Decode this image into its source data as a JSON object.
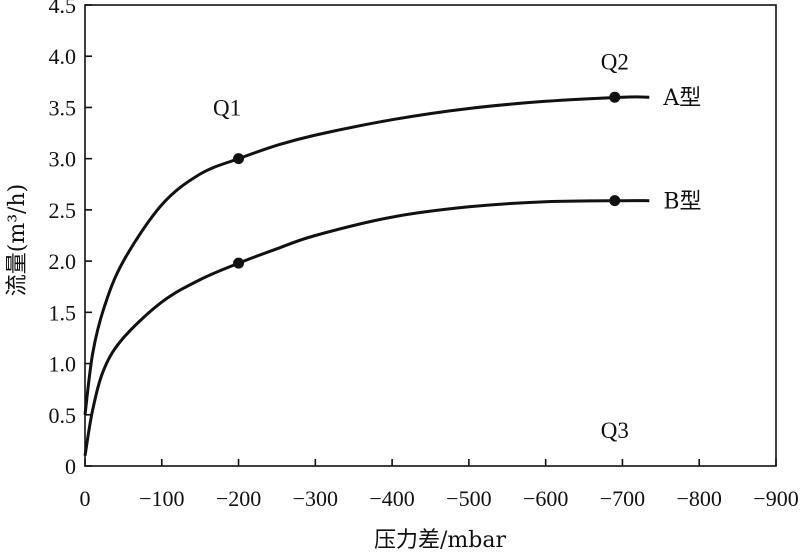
{
  "chart_data": {
    "type": "line",
    "xlabel": "压力差/mbar",
    "ylabel": "流量(m³/h)",
    "xlim": [
      0,
      -900
    ],
    "ylim": [
      0,
      4.5
    ],
    "x_ticks": [
      0,
      -100,
      -200,
      -300,
      -400,
      -500,
      -600,
      -700,
      -800,
      -900
    ],
    "x_tick_labels": [
      "0",
      "−100",
      "−200",
      "−300",
      "−400",
      "−500",
      "−600",
      "−700",
      "−800",
      "−900"
    ],
    "y_ticks": [
      0,
      0.5,
      1.0,
      1.5,
      2.0,
      2.5,
      3.0,
      3.5,
      4.0,
      4.5
    ],
    "y_tick_labels": [
      "0",
      "0.5",
      "1.0",
      "1.5",
      "2.0",
      "2.5",
      "3.0",
      "3.5",
      "4.0",
      "4.5"
    ],
    "grid": false,
    "series": [
      {
        "name": "A型",
        "x": [
          0,
          -10,
          -25,
          -50,
          -100,
          -150,
          -200,
          -250,
          -300,
          -400,
          -500,
          -600,
          -700,
          -735
        ],
        "y": [
          0.5,
          1.1,
          1.55,
          2.0,
          2.55,
          2.85,
          3.0,
          3.13,
          3.23,
          3.38,
          3.49,
          3.56,
          3.6,
          3.6
        ],
        "markers": [
          {
            "x": -200,
            "y": 3.0
          },
          {
            "x": -690,
            "y": 3.6
          }
        ]
      },
      {
        "name": "B型",
        "x": [
          0,
          -10,
          -25,
          -50,
          -100,
          -150,
          -200,
          -250,
          -300,
          -400,
          -500,
          -600,
          -700,
          -735
        ],
        "y": [
          0.1,
          0.55,
          0.95,
          1.25,
          1.6,
          1.82,
          1.98,
          2.12,
          2.25,
          2.43,
          2.53,
          2.58,
          2.59,
          2.59
        ],
        "markers": [
          {
            "x": -200,
            "y": 1.98
          },
          {
            "x": -690,
            "y": 2.59
          }
        ]
      }
    ],
    "annotations": [
      {
        "text": "Q1",
        "x": -185,
        "y": 3.5
      },
      {
        "text": "Q2",
        "x": -690,
        "y": 3.95
      },
      {
        "text": "Q3",
        "x": -690,
        "y": 0.35
      }
    ]
  }
}
